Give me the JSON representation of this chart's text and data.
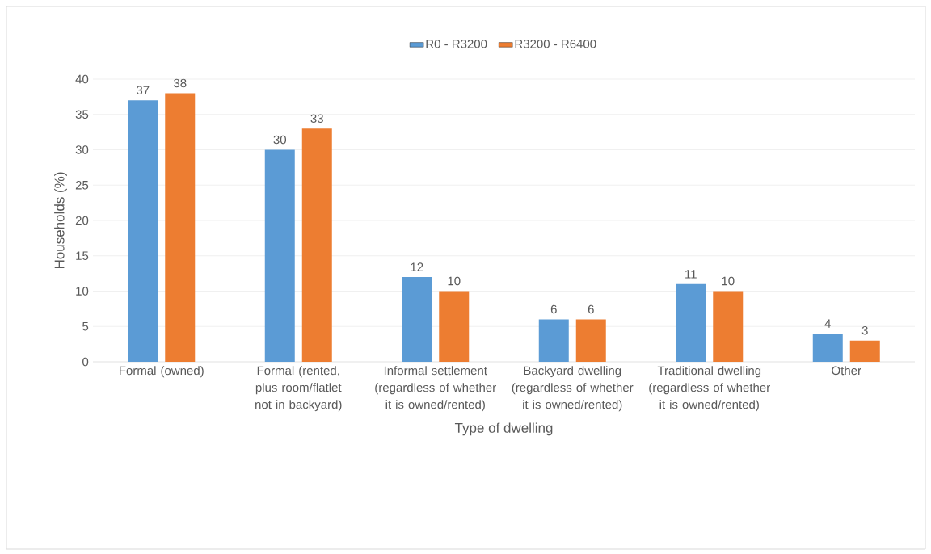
{
  "chart_data": {
    "type": "bar",
    "xlabel": "Type of dwelling",
    "ylabel": "Households (%)",
    "categories": [
      "Formal (owned)",
      "Formal (rented, plus room/flatlet not in backyard)",
      "Informal settlement (regardless of whether it is owned/rented)",
      "Backyard dwelling (regardless of whether it is owned/rented)",
      "Traditional dwelling (regardless of whether it is owned/rented)",
      "Other"
    ],
    "series": [
      {
        "name": "R0 - R3200",
        "color": "#5b9bd5",
        "values": [
          37,
          30,
          12,
          6,
          11,
          4
        ]
      },
      {
        "name": "R3200 - R6400",
        "color": "#ed7d31",
        "values": [
          38,
          33,
          10,
          6,
          10,
          3
        ]
      }
    ],
    "ylim": [
      0,
      40
    ],
    "yticks": [
      0,
      5,
      10,
      15,
      20,
      25,
      30,
      35,
      40
    ],
    "grid": "y",
    "legend": "top",
    "data_labels": true
  }
}
